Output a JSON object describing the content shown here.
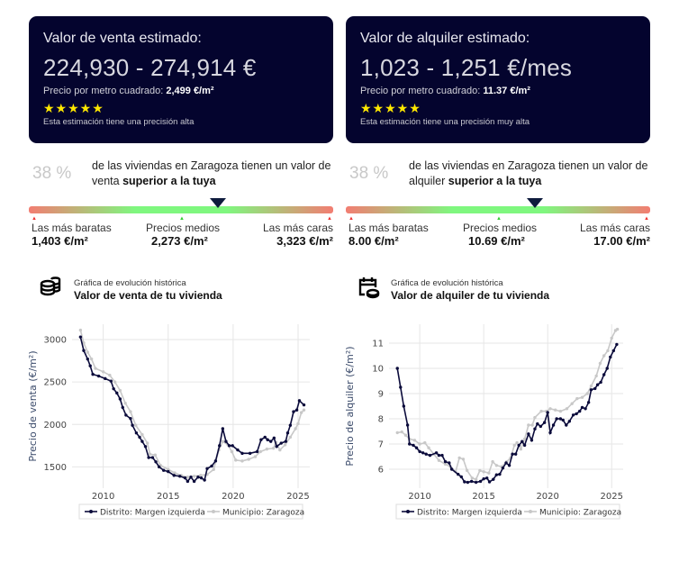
{
  "sale": {
    "card": {
      "title": "Valor de venta estimado:",
      "range": "224,930 - 274,914 €",
      "ppm_label": "Precio por metro cuadrado:",
      "ppm_value": "2,499 €/m²",
      "stars": "★★★★★",
      "rating": 5,
      "precision": "Esta estimación tiene una precisión alta"
    },
    "percentile": {
      "pct": "38 %",
      "text": "de las viviendas en Zaragoza tienen un valor de venta",
      "bold": "superior a la tuya",
      "marker_position": 0.62
    },
    "scale": {
      "low_label": "Las más baratas",
      "low_value": "1,403 €/m²",
      "mid_label": "Precios medios",
      "mid_value": "2,273 €/m²",
      "high_label": "Las más caras",
      "high_value": "3,323 €/m²"
    },
    "history": {
      "subtitle": "Gráfica de evolución histórica",
      "title": "Valor de venta de tu vivienda",
      "icon": "coins-stack-icon"
    }
  },
  "rent": {
    "card": {
      "title": "Valor de alquiler estimado:",
      "range": "1,023 - 1,251 €/mes",
      "ppm_label": "Precio por metro cuadrado:",
      "ppm_value": "11.37 €/m²",
      "stars": "★★★★★",
      "rating": 5,
      "precision": "Esta estimación tiene una precisión muy alta"
    },
    "percentile": {
      "pct": "38 %",
      "text": "de las viviendas en Zaragoza tienen un valor de alquiler",
      "bold": "superior a la tuya",
      "marker_position": 0.62
    },
    "scale": {
      "low_label": "Las más baratas",
      "low_value": "8.00 €/m²",
      "mid_label": "Precios medios",
      "mid_value": "10.69 €/m²",
      "high_label": "Las más caras",
      "high_value": "17.00 €/m²"
    },
    "history": {
      "subtitle": "Gráfica de evolución histórica",
      "title": "Valor de alquiler de tu vivienda",
      "icon": "calendar-coin-icon"
    }
  },
  "colors": {
    "card_bg": "#04042e",
    "star": "#ffe800",
    "district": "#0b0b3b",
    "municipality": "#c8c8c8",
    "marker": "#0e1b3d"
  },
  "chart_data": [
    {
      "type": "line",
      "ylabel": "Precio de venta (€/m²)",
      "xticks": [
        "2010",
        "2015",
        "2020",
        "2025"
      ],
      "yticks": [
        "1500",
        "2000",
        "2500",
        "3000"
      ],
      "xlim": [
        2007.6,
        2025.9
      ],
      "ylim": [
        1250,
        3180
      ],
      "grid": true,
      "legend": "bottom",
      "series": [
        {
          "name": "Distrito: Margen izquierda",
          "x": [
            2008.25,
            2008.5,
            2008.8,
            2009.0,
            2009.2,
            2009.65,
            2010.15,
            2010.6,
            2010.8,
            2011.05,
            2011.3,
            2011.5,
            2011.75,
            2012.1,
            2012.25,
            2012.55,
            2012.8,
            2013.0,
            2013.25,
            2013.5,
            2013.8,
            2014.05,
            2014.3,
            2014.65,
            2015.0,
            2015.45,
            2015.9,
            2016.3,
            2016.5,
            2016.75,
            2017.0,
            2017.3,
            2017.55,
            2017.8,
            2018.0,
            2018.35,
            2018.65,
            2018.95,
            2019.2,
            2019.45,
            2019.7,
            2019.95,
            2020.35,
            2020.7,
            2021.3,
            2021.85,
            2022.15,
            2022.45,
            2022.65,
            2022.9,
            2023.15,
            2023.35,
            2023.7,
            2024.05,
            2024.2,
            2024.4,
            2024.65,
            2024.9,
            2025.1,
            2025.45
          ],
          "y": [
            3030,
            2870,
            2770,
            2690,
            2590,
            2570,
            2540,
            2510,
            2420,
            2370,
            2300,
            2200,
            2110,
            2070,
            1990,
            1900,
            1850,
            1800,
            1740,
            1610,
            1610,
            1560,
            1500,
            1460,
            1445,
            1400,
            1390,
            1370,
            1330,
            1380,
            1330,
            1380,
            1370,
            1345,
            1480,
            1510,
            1570,
            1750,
            1950,
            1800,
            1750,
            1750,
            1700,
            1660,
            1660,
            1680,
            1820,
            1850,
            1820,
            1800,
            1840,
            1740,
            1780,
            1800,
            1900,
            1990,
            2150,
            2170,
            2280,
            2230
          ]
        },
        {
          "name": "Municipio: Zaragoza",
          "x": [
            2008.25,
            2008.5,
            2008.8,
            2009.1,
            2009.4,
            2010.0,
            2010.5,
            2010.9,
            2011.3,
            2011.7,
            2012.1,
            2012.5,
            2013.0,
            2013.4,
            2013.6,
            2014.0,
            2014.4,
            2015.0,
            2015.5,
            2016.0,
            2016.5,
            2017.0,
            2017.5,
            2018.0,
            2018.5,
            2018.9,
            2019.2,
            2019.6,
            2019.9,
            2020.2,
            2020.7,
            2021.2,
            2021.7,
            2022.1,
            2022.6,
            2023.1,
            2023.3,
            2023.6,
            2024.0,
            2024.4,
            2024.8,
            2025.0,
            2025.25,
            2025.45
          ],
          "y": [
            3110,
            2960,
            2850,
            2770,
            2660,
            2620,
            2580,
            2500,
            2400,
            2250,
            2150,
            1990,
            1880,
            1780,
            1650,
            1640,
            1520,
            1470,
            1430,
            1400,
            1380,
            1390,
            1400,
            1410,
            1470,
            1700,
            1800,
            1760,
            1680,
            1580,
            1570,
            1590,
            1620,
            1680,
            1710,
            1720,
            1790,
            1700,
            1760,
            1850,
            1950,
            2010,
            2140,
            2170
          ]
        }
      ]
    },
    {
      "type": "line",
      "ylabel": "Precio de alquiler (€/m²)",
      "xticks": [
        "2010",
        "2015",
        "2020",
        "2025"
      ],
      "yticks": [
        "6",
        "7",
        "8",
        "9",
        "10",
        "11"
      ],
      "xlim": [
        2007.6,
        2025.9
      ],
      "ylim": [
        5.25,
        11.75
      ],
      "grid": true,
      "legend": "bottom",
      "series": [
        {
          "name": "Distrito: Margen izquierda",
          "x": [
            2008.25,
            2008.5,
            2008.75,
            2009.05,
            2009.2,
            2009.5,
            2009.75,
            2010.0,
            2010.25,
            2010.5,
            2010.8,
            2011.3,
            2011.5,
            2011.75,
            2012.0,
            2012.3,
            2012.5,
            2013.0,
            2013.25,
            2013.5,
            2013.75,
            2014.05,
            2014.4,
            2014.75,
            2015.0,
            2015.25,
            2015.45,
            2015.75,
            2016.0,
            2016.25,
            2016.5,
            2016.75,
            2017.0,
            2017.25,
            2017.5,
            2017.75,
            2018.0,
            2018.2,
            2018.5,
            2018.75,
            2019.0,
            2019.2,
            2019.45,
            2019.75,
            2020.0,
            2020.2,
            2020.45,
            2020.7,
            2021.0,
            2021.2,
            2021.45,
            2021.7,
            2022.0,
            2022.25,
            2022.5,
            2022.7,
            2022.95,
            2023.2,
            2023.4,
            2023.7,
            2023.9,
            2024.15,
            2024.4,
            2024.65,
            2024.9,
            2025.15,
            2025.4
          ],
          "y": [
            10.0,
            9.25,
            8.5,
            7.75,
            7.0,
            6.95,
            6.85,
            6.7,
            6.65,
            6.6,
            6.55,
            6.65,
            6.55,
            6.55,
            6.3,
            6.25,
            6.0,
            5.8,
            5.7,
            5.5,
            5.48,
            5.52,
            5.48,
            5.52,
            5.62,
            5.65,
            5.5,
            5.6,
            5.78,
            5.8,
            6.05,
            6.25,
            6.15,
            6.6,
            6.6,
            6.95,
            7.1,
            6.95,
            7.4,
            7.15,
            7.6,
            7.8,
            7.7,
            7.85,
            8.25,
            7.45,
            7.75,
            8.0,
            8.0,
            7.95,
            7.75,
            7.9,
            8.15,
            8.2,
            8.3,
            8.45,
            8.4,
            8.65,
            9.15,
            9.2,
            9.35,
            9.45,
            9.75,
            10.0,
            10.45,
            10.7,
            10.95
          ]
        },
        {
          "name": "Municipio: Zaragoza",
          "x": [
            2008.25,
            2008.6,
            2008.9,
            2009.2,
            2009.6,
            2010.0,
            2010.4,
            2010.7,
            2011.1,
            2011.5,
            2012.0,
            2012.4,
            2012.8,
            2013.1,
            2013.4,
            2013.7,
            2014.1,
            2014.4,
            2014.7,
            2015.0,
            2015.4,
            2015.7,
            2016.0,
            2016.4,
            2016.8,
            2017.1,
            2017.4,
            2017.6,
            2017.9,
            2018.2,
            2018.5,
            2018.8,
            2019.0,
            2019.5,
            2019.9,
            2020.2,
            2020.6,
            2021.0,
            2021.5,
            2021.9,
            2022.3,
            2022.7,
            2023.1,
            2023.4,
            2023.8,
            2024.1,
            2024.4,
            2024.7,
            2025.0,
            2025.3,
            2025.45
          ],
          "y": [
            7.45,
            7.48,
            7.35,
            7.2,
            7.15,
            7.0,
            7.05,
            6.85,
            6.6,
            6.35,
            6.2,
            6.1,
            5.9,
            6.45,
            6.4,
            5.95,
            5.65,
            5.6,
            5.95,
            5.9,
            5.85,
            6.3,
            6.15,
            6.1,
            6.3,
            6.45,
            6.95,
            7.05,
            6.8,
            7.2,
            7.75,
            7.75,
            8.05,
            8.3,
            8.3,
            8.4,
            8.35,
            8.3,
            8.4,
            8.6,
            8.8,
            8.85,
            9.0,
            9.3,
            9.7,
            10.2,
            10.5,
            10.7,
            11.2,
            11.5,
            11.55
          ]
        }
      ]
    }
  ]
}
